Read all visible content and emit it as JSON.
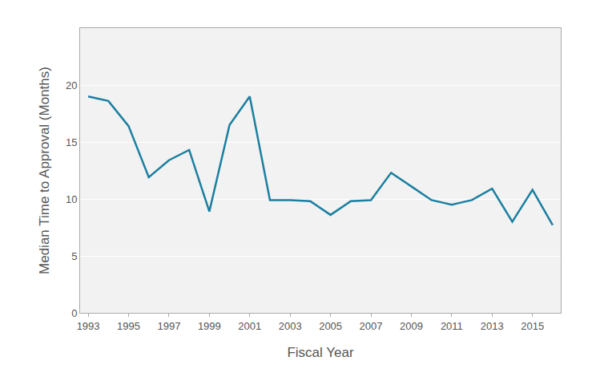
{
  "chart_data": {
    "type": "line",
    "x_label": "Fiscal Year",
    "y_label": "Median Time to Approval (Months)",
    "x": [
      1993,
      1994,
      1995,
      1996,
      1997,
      1998,
      1999,
      2000,
      2001,
      2002,
      2003,
      2004,
      2005,
      2006,
      2007,
      2008,
      2009,
      2010,
      2011,
      2012,
      2013,
      2014,
      2015,
      2016
    ],
    "values": [
      19.0,
      18.6,
      16.4,
      11.9,
      13.4,
      14.3,
      8.9,
      16.5,
      19.0,
      9.9,
      9.9,
      9.8,
      8.6,
      9.8,
      9.9,
      12.3,
      11.1,
      9.9,
      9.5,
      9.9,
      10.9,
      8.0,
      10.8,
      7.7
    ],
    "color": "#1a7fa0",
    "xlim": [
      1992.6,
      2016.4
    ],
    "xticks": [
      1993,
      1995,
      1997,
      1999,
      2001,
      2003,
      2005,
      2007,
      2009,
      2011,
      2013,
      2015
    ],
    "ylim": [
      0,
      25
    ],
    "yticks": [
      0,
      5,
      10,
      15,
      20
    ],
    "grid": true
  }
}
